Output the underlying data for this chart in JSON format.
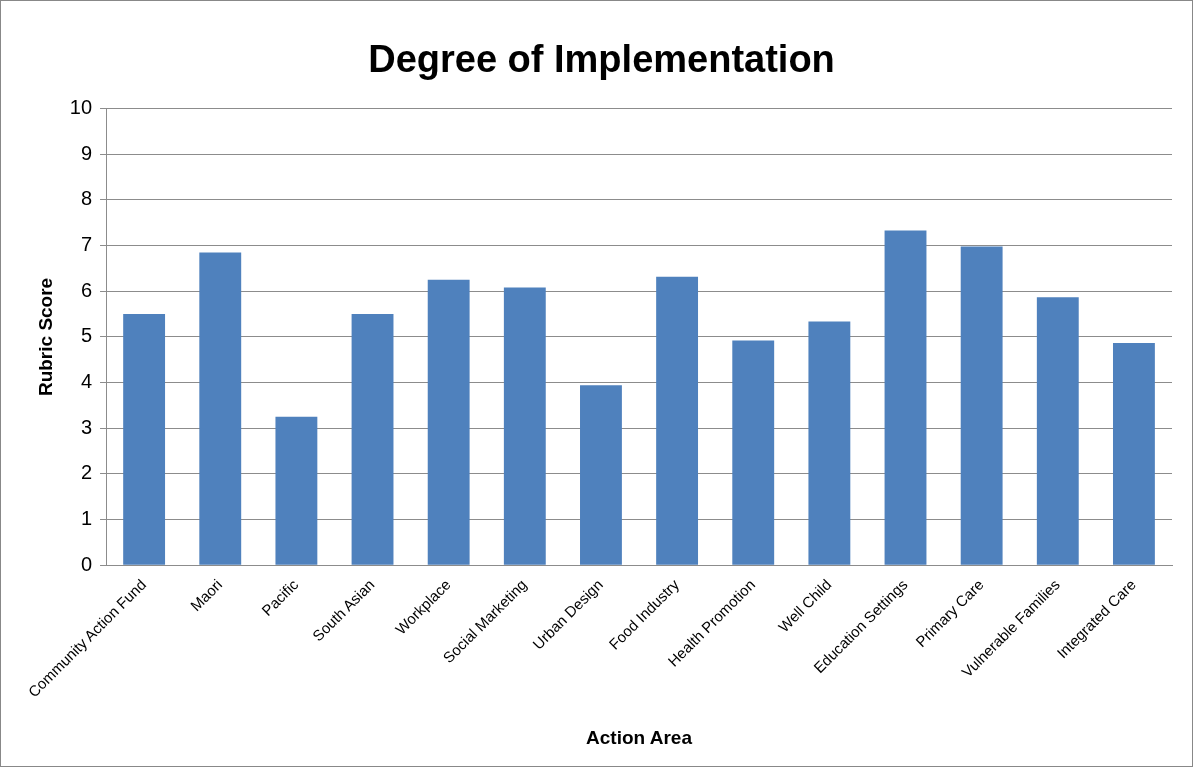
{
  "chart_data": {
    "type": "bar",
    "title": "Degree of Implementation",
    "xlabel": "Action Area",
    "ylabel": "Rubric Score",
    "categories": [
      "Community Action Fund",
      "Maori",
      "Pacific",
      "South Asian",
      "Workplace",
      "Social Marketing",
      "Urban Design",
      "Food Industry",
      "Health Promotion",
      "Well Child",
      "Education Settings",
      "Primary Care",
      "Vulnerable Families",
      "Integrated Care"
    ],
    "values": [
      5.5,
      6.85,
      3.25,
      5.5,
      6.25,
      6.08,
      3.94,
      6.32,
      4.92,
      5.34,
      7.33,
      6.98,
      5.87,
      4.87
    ],
    "color": "#4f81bd",
    "ylim": [
      0,
      10
    ],
    "yticks": [
      0,
      1,
      2,
      3,
      4,
      5,
      6,
      7,
      8,
      9,
      10
    ],
    "grid": "y",
    "legend": false
  }
}
